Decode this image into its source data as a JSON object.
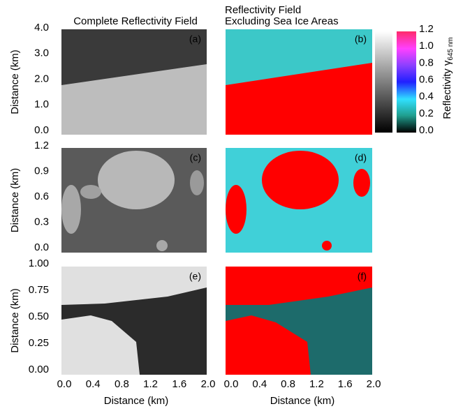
{
  "chart_data": [
    {
      "type": "image",
      "title": "Complete Reflectivity Field",
      "panel_label": "(a)",
      "ylabel": "Distance (km)",
      "xlim": [
        0,
        2
      ],
      "ylim": [
        0,
        4
      ],
      "yticks": [
        {
          "value": 0,
          "label": "0.0"
        },
        {
          "value": 1,
          "label": "1.0"
        },
        {
          "value": 2,
          "label": "2.0"
        },
        {
          "value": 3,
          "label": "3.0"
        },
        {
          "value": 4,
          "label": "4.0"
        }
      ]
    },
    {
      "type": "image",
      "title": [
        "Reflectivity Field",
        "Excluding Sea Ice Areas"
      ],
      "panel_label": "(b)",
      "xlim": [
        0,
        2
      ],
      "ylim": [
        0,
        4
      ]
    },
    {
      "type": "image",
      "panel_label": "(c)",
      "ylabel": "Distance (km)",
      "xlim": [
        0,
        2
      ],
      "ylim": [
        0,
        1.2
      ],
      "yticks": [
        {
          "value": 0,
          "label": "0.0"
        },
        0.3,
        0.6,
        0.9,
        1.2
      ]
    },
    {
      "type": "image",
      "panel_label": "(d)",
      "xlim": [
        0,
        2
      ],
      "ylim": [
        0,
        1.2
      ]
    },
    {
      "type": "image",
      "panel_label": "(e)",
      "ylabel": "Distance (km)",
      "xlabel": "Distance (km)",
      "xlim": [
        0,
        2
      ],
      "ylim": [
        0,
        1
      ],
      "yticks": [
        {
          "value": 0,
          "label": "0.00"
        },
        0.25,
        {
          "value": 0.5,
          "label": "0.50"
        },
        0.75,
        {
          "value": 1,
          "label": "1.00"
        }
      ],
      "xticks": [
        {
          "value": 0,
          "label": "0.0"
        },
        0.4,
        0.8,
        1.2,
        1.6,
        {
          "value": 2,
          "label": "2.0"
        }
      ]
    },
    {
      "type": "image",
      "panel_label": "(f)",
      "xlabel": "Distance (km)",
      "xlim": [
        0,
        2
      ],
      "ylim": [
        0,
        1
      ],
      "xticks": [
        {
          "value": 0,
          "label": "0.0"
        },
        0.4,
        0.8,
        1.2,
        1.6,
        {
          "value": 2,
          "label": "2.0"
        }
      ]
    }
  ],
  "colorbar": {
    "label": "Reflectivity γ",
    "label_subscript": "645 nm",
    "ylim": [
      0,
      1.2
    ],
    "ticks": [
      {
        "value": 0,
        "label": "0.0"
      },
      0.2,
      0.4,
      0.6,
      0.8,
      {
        "value": 1,
        "label": "1.0"
      },
      1.2
    ]
  }
}
